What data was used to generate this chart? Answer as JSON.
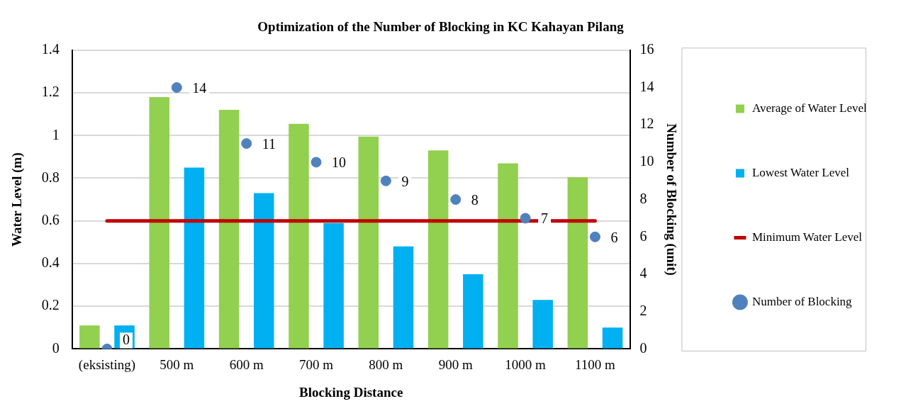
{
  "chart_data": {
    "type": "bar",
    "title": "Optimization of the Number of Blocking in KC Kahayan Pilang",
    "xlabel": "Blocking Distance",
    "ylabel": "Water Level (m)",
    "y2label": "Number of Blocking (unit)",
    "categories": [
      "(eksisting)",
      "500 m",
      "600 m",
      "700 m",
      "800 m",
      "900 m",
      "1000 m",
      "1100 m"
    ],
    "series": [
      {
        "name": "Average of Water Level",
        "color": "#92d050",
        "values": [
          0.11,
          1.18,
          1.12,
          1.055,
          0.995,
          0.93,
          0.87,
          0.805
        ]
      },
      {
        "name": "Lowest Water Level",
        "color": "#00b0f0",
        "values": [
          0.11,
          0.85,
          0.73,
          0.59,
          0.48,
          0.35,
          0.23,
          0.1
        ]
      },
      {
        "name": "Minimum Water Level",
        "type": "line",
        "color": "#c00000",
        "marker": "none",
        "values": [
          0.6,
          0.6,
          0.6,
          0.6,
          0.6,
          0.6,
          0.6,
          0.6
        ]
      },
      {
        "name": "Number of Blocking",
        "type": "scatter",
        "axis": "y2",
        "color": "#4f81bd",
        "marker": "circle",
        "x": [
          "(eksisting)",
          "500 m",
          "600 m",
          "700 m",
          "800 m",
          "900 m",
          "1000 m",
          "1100 m"
        ],
        "values": [
          0,
          14,
          11,
          10,
          9,
          8,
          7,
          6
        ],
        "value_labels": [
          "0",
          "14",
          "11",
          "10",
          "9",
          "8",
          "7",
          "6"
        ]
      }
    ],
    "ylim": [
      0,
      1.4
    ],
    "yticks": [
      0,
      0.2,
      0.4,
      0.6,
      0.8,
      1,
      1.2,
      1.4
    ],
    "y2lim": [
      0,
      16
    ],
    "y2ticks": [
      0,
      2,
      4,
      6,
      8,
      10,
      12,
      14,
      16
    ],
    "grid": "y",
    "legend": "right"
  }
}
